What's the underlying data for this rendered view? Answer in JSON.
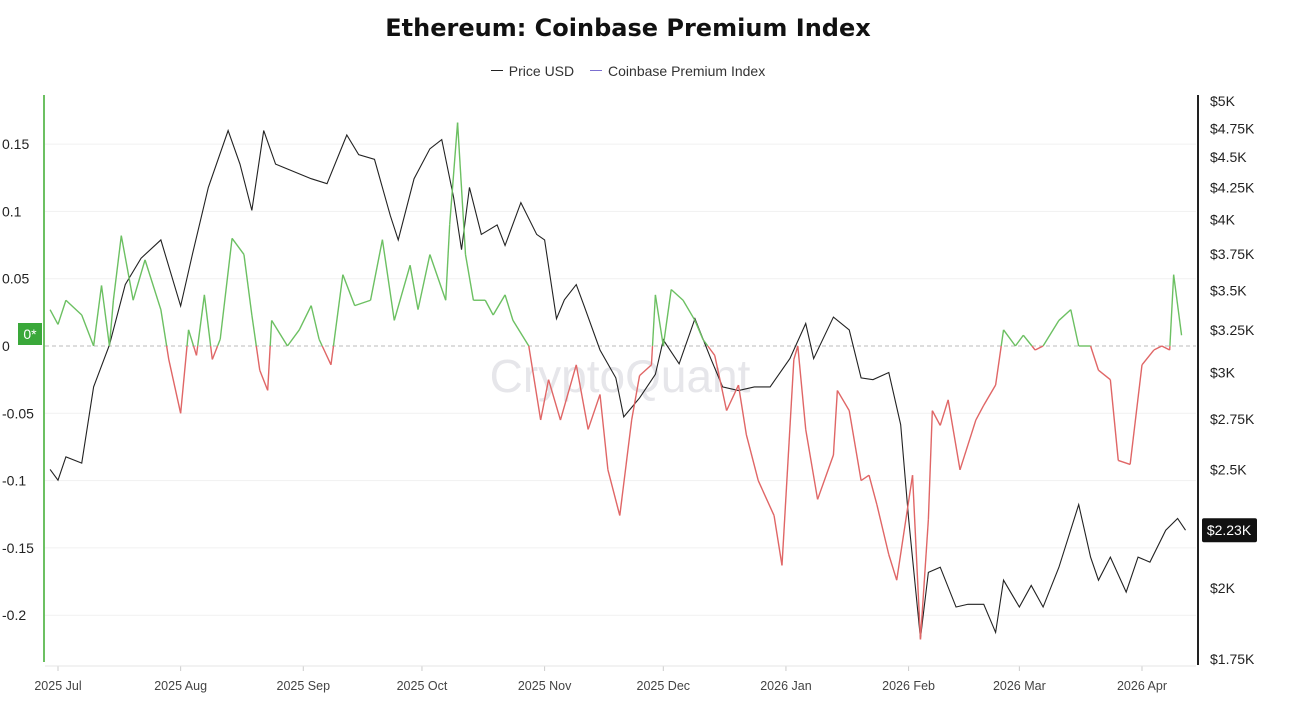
{
  "chart_data": {
    "type": "line",
    "title": "Ethereum: Coinbase Premium Index",
    "legend": [
      "Price USD",
      "Coinbase Premium Index"
    ],
    "legend_placement": "top-center",
    "watermark": "CryptoQuant",
    "colors": {
      "price": "#222222",
      "premium_positive": "#6cc062",
      "premium_negative": "#e06666",
      "legend_premium": "#7b6fd0",
      "zero_badge": "#3aa83a",
      "price_badge": "#111111"
    },
    "grid": true,
    "x_ticks": [
      "2025 Jul",
      "2025 Aug",
      "2025 Sep",
      "2025 Oct",
      "2025 Nov",
      "2025 Dec",
      "2026 Jan",
      "2026 Feb",
      "2026 Mar",
      "2026 Apr"
    ],
    "x_tick_dates": [
      "2025-07-01",
      "2025-08-01",
      "2025-09-01",
      "2025-10-01",
      "2025-11-01",
      "2025-12-01",
      "2026-01-01",
      "2026-02-01",
      "2026-03-01",
      "2026-04-01"
    ],
    "left_axis": {
      "ticks": [
        "0.15",
        "0.1",
        "0.05",
        "0",
        "-0.05",
        "-0.1",
        "-0.15",
        "-0.2"
      ],
      "tick_values": [
        0.15,
        0.1,
        0.05,
        0,
        -0.05,
        -0.1,
        -0.15,
        -0.2
      ],
      "zero_badge": "0*"
    },
    "right_axis": {
      "scale": "log",
      "ticks": [
        "$5K",
        "$4.75K",
        "$4.5K",
        "$4.25K",
        "$4K",
        "$3.75K",
        "$3.5K",
        "$3.25K",
        "$3K",
        "$2.75K",
        "$2.5K",
        "$2K",
        "$1.75K"
      ],
      "tick_values": [
        5000,
        4750,
        4500,
        4250,
        4000,
        3750,
        3500,
        3250,
        3000,
        2750,
        2500,
        2000,
        1750
      ],
      "current_badge": "$2.23K"
    },
    "series": [
      {
        "name": "Price USD",
        "axis": "right",
        "points": [
          [
            "2025-06-29",
            2500
          ],
          [
            "2025-07-01",
            2450
          ],
          [
            "2025-07-03",
            2560
          ],
          [
            "2025-07-07",
            2530
          ],
          [
            "2025-07-10",
            2920
          ],
          [
            "2025-07-14",
            3160
          ],
          [
            "2025-07-18",
            3540
          ],
          [
            "2025-07-22",
            3720
          ],
          [
            "2025-07-27",
            3850
          ],
          [
            "2025-08-01",
            3400
          ],
          [
            "2025-08-04",
            3750
          ],
          [
            "2025-08-08",
            4250
          ],
          [
            "2025-08-13",
            4730
          ],
          [
            "2025-08-16",
            4440
          ],
          [
            "2025-08-19",
            4070
          ],
          [
            "2025-08-22",
            4730
          ],
          [
            "2025-08-25",
            4440
          ],
          [
            "2025-08-28",
            4400
          ],
          [
            "2025-09-03",
            4320
          ],
          [
            "2025-09-07",
            4280
          ],
          [
            "2025-09-12",
            4690
          ],
          [
            "2025-09-15",
            4520
          ],
          [
            "2025-09-19",
            4480
          ],
          [
            "2025-09-23",
            4030
          ],
          [
            "2025-09-25",
            3850
          ],
          [
            "2025-09-29",
            4320
          ],
          [
            "2025-10-03",
            4570
          ],
          [
            "2025-10-06",
            4650
          ],
          [
            "2025-10-09",
            4170
          ],
          [
            "2025-10-11",
            3780
          ],
          [
            "2025-10-13",
            4250
          ],
          [
            "2025-10-16",
            3890
          ],
          [
            "2025-10-20",
            3960
          ],
          [
            "2025-10-22",
            3810
          ],
          [
            "2025-10-26",
            4130
          ],
          [
            "2025-10-30",
            3890
          ],
          [
            "2025-11-01",
            3850
          ],
          [
            "2025-11-04",
            3320
          ],
          [
            "2025-11-06",
            3440
          ],
          [
            "2025-11-09",
            3540
          ],
          [
            "2025-11-11",
            3400
          ],
          [
            "2025-11-15",
            3130
          ],
          [
            "2025-11-19",
            2970
          ],
          [
            "2025-11-21",
            2760
          ],
          [
            "2025-11-25",
            2860
          ],
          [
            "2025-11-29",
            2990
          ],
          [
            "2025-12-01",
            3190
          ],
          [
            "2025-12-05",
            3050
          ],
          [
            "2025-12-09",
            3320
          ],
          [
            "2025-12-13",
            3080
          ],
          [
            "2025-12-16",
            2920
          ],
          [
            "2025-12-20",
            2900
          ],
          [
            "2025-12-24",
            2920
          ],
          [
            "2025-12-28",
            2920
          ],
          [
            "2026-01-02",
            3080
          ],
          [
            "2026-01-06",
            3290
          ],
          [
            "2026-01-08",
            3080
          ],
          [
            "2026-01-13",
            3330
          ],
          [
            "2026-01-17",
            3250
          ],
          [
            "2026-01-20",
            2970
          ],
          [
            "2026-01-23",
            2960
          ],
          [
            "2026-01-27",
            3000
          ],
          [
            "2026-01-30",
            2720
          ],
          [
            "2026-02-01",
            2280
          ],
          [
            "2026-02-04",
            1820
          ],
          [
            "2026-02-06",
            2060
          ],
          [
            "2026-02-09",
            2080
          ],
          [
            "2026-02-13",
            1930
          ],
          [
            "2026-02-16",
            1940
          ],
          [
            "2026-02-20",
            1940
          ],
          [
            "2026-02-23",
            1840
          ],
          [
            "2026-02-25",
            2030
          ],
          [
            "2026-03-01",
            1930
          ],
          [
            "2026-03-04",
            2010
          ],
          [
            "2026-03-07",
            1930
          ],
          [
            "2026-03-11",
            2080
          ],
          [
            "2026-03-16",
            2340
          ],
          [
            "2026-03-19",
            2120
          ],
          [
            "2026-03-21",
            2030
          ],
          [
            "2026-03-24",
            2120
          ],
          [
            "2026-03-28",
            1985
          ],
          [
            "2026-03-31",
            2120
          ],
          [
            "2026-04-03",
            2100
          ],
          [
            "2026-04-07",
            2230
          ],
          [
            "2026-04-10",
            2280
          ],
          [
            "2026-04-12",
            2230
          ]
        ]
      },
      {
        "name": "Coinbase Premium Index",
        "axis": "left",
        "points": [
          [
            "2025-06-29",
            0.027
          ],
          [
            "2025-07-01",
            0.016
          ],
          [
            "2025-07-03",
            0.034
          ],
          [
            "2025-07-07",
            0.023
          ],
          [
            "2025-07-10",
            0.0
          ],
          [
            "2025-07-12",
            0.045
          ],
          [
            "2025-07-14",
            0.0
          ],
          [
            "2025-07-15",
            0.034
          ],
          [
            "2025-07-17",
            0.082
          ],
          [
            "2025-07-20",
            0.034
          ],
          [
            "2025-07-23",
            0.064
          ],
          [
            "2025-07-27",
            0.027
          ],
          [
            "2025-07-29",
            -0.01
          ],
          [
            "2025-08-01",
            -0.05
          ],
          [
            "2025-08-03",
            0.012
          ],
          [
            "2025-08-05",
            -0.007
          ],
          [
            "2025-08-07",
            0.038
          ],
          [
            "2025-08-09",
            -0.01
          ],
          [
            "2025-08-11",
            0.005
          ],
          [
            "2025-08-14",
            0.08
          ],
          [
            "2025-08-17",
            0.068
          ],
          [
            "2025-08-19",
            0.023
          ],
          [
            "2025-08-21",
            -0.018
          ],
          [
            "2025-08-23",
            -0.033
          ],
          [
            "2025-08-24",
            0.019
          ],
          [
            "2025-08-28",
            0.0
          ],
          [
            "2025-08-31",
            0.012
          ],
          [
            "2025-09-03",
            0.03
          ],
          [
            "2025-09-05",
            0.005
          ],
          [
            "2025-09-08",
            -0.014
          ],
          [
            "2025-09-11",
            0.053
          ],
          [
            "2025-09-14",
            0.03
          ],
          [
            "2025-09-18",
            0.034
          ],
          [
            "2025-09-21",
            0.079
          ],
          [
            "2025-09-24",
            0.019
          ],
          [
            "2025-09-28",
            0.06
          ],
          [
            "2025-09-30",
            0.027
          ],
          [
            "2025-10-03",
            0.068
          ],
          [
            "2025-10-07",
            0.034
          ],
          [
            "2025-10-08",
            0.09
          ],
          [
            "2025-10-10",
            0.166
          ],
          [
            "2025-10-12",
            0.068
          ],
          [
            "2025-10-14",
            0.034
          ],
          [
            "2025-10-17",
            0.034
          ],
          [
            "2025-10-19",
            0.023
          ],
          [
            "2025-10-22",
            0.038
          ],
          [
            "2025-10-24",
            0.019
          ],
          [
            "2025-10-28",
            0.0
          ],
          [
            "2025-10-31",
            -0.055
          ],
          [
            "2025-11-02",
            -0.025
          ],
          [
            "2025-11-05",
            -0.055
          ],
          [
            "2025-11-09",
            -0.014
          ],
          [
            "2025-11-12",
            -0.062
          ],
          [
            "2025-11-15",
            -0.036
          ],
          [
            "2025-11-17",
            -0.092
          ],
          [
            "2025-11-20",
            -0.126
          ],
          [
            "2025-11-23",
            -0.055
          ],
          [
            "2025-11-25",
            -0.022
          ],
          [
            "2025-11-28",
            -0.014
          ],
          [
            "2025-11-29",
            0.038
          ],
          [
            "2025-12-01",
            0.0
          ],
          [
            "2025-12-03",
            0.042
          ],
          [
            "2025-12-06",
            0.034
          ],
          [
            "2025-12-09",
            0.019
          ],
          [
            "2025-12-11",
            0.005
          ],
          [
            "2025-12-14",
            -0.007
          ],
          [
            "2025-12-17",
            -0.048
          ],
          [
            "2025-12-20",
            -0.029
          ],
          [
            "2025-12-22",
            -0.066
          ],
          [
            "2025-12-25",
            -0.1
          ],
          [
            "2025-12-29",
            -0.126
          ],
          [
            "2025-12-31",
            -0.163
          ],
          [
            "2026-01-03",
            -0.01
          ],
          [
            "2026-01-04",
            0.0
          ],
          [
            "2026-01-06",
            -0.062
          ],
          [
            "2026-01-09",
            -0.114
          ],
          [
            "2026-01-13",
            -0.081
          ],
          [
            "2026-01-14",
            -0.033
          ],
          [
            "2026-01-17",
            -0.048
          ],
          [
            "2026-01-20",
            -0.1
          ],
          [
            "2026-01-22",
            -0.096
          ],
          [
            "2026-01-24",
            -0.118
          ],
          [
            "2026-01-27",
            -0.155
          ],
          [
            "2026-01-29",
            -0.174
          ],
          [
            "2026-02-02",
            -0.096
          ],
          [
            "2026-02-04",
            -0.218
          ],
          [
            "2026-02-06",
            -0.129
          ],
          [
            "2026-02-07",
            -0.048
          ],
          [
            "2026-02-09",
            -0.059
          ],
          [
            "2026-02-11",
            -0.04
          ],
          [
            "2026-02-14",
            -0.092
          ],
          [
            "2026-02-18",
            -0.055
          ],
          [
            "2026-02-20",
            -0.044
          ],
          [
            "2026-02-23",
            -0.029
          ],
          [
            "2026-02-25",
            0.012
          ],
          [
            "2026-02-28",
            0.0
          ],
          [
            "2026-03-02",
            0.008
          ],
          [
            "2026-03-05",
            -0.003
          ],
          [
            "2026-03-07",
            0.0
          ],
          [
            "2026-03-11",
            0.019
          ],
          [
            "2026-03-14",
            0.027
          ],
          [
            "2026-03-16",
            0.0
          ],
          [
            "2026-03-19",
            0.0
          ],
          [
            "2026-03-21",
            -0.018
          ],
          [
            "2026-03-24",
            -0.025
          ],
          [
            "2026-03-26",
            -0.085
          ],
          [
            "2026-03-29",
            -0.088
          ],
          [
            "2026-04-01",
            -0.014
          ],
          [
            "2026-04-04",
            -0.003
          ],
          [
            "2026-04-06",
            0.0
          ],
          [
            "2026-04-08",
            -0.003
          ],
          [
            "2026-04-09",
            0.053
          ],
          [
            "2026-04-11",
            0.008
          ]
        ]
      }
    ]
  }
}
